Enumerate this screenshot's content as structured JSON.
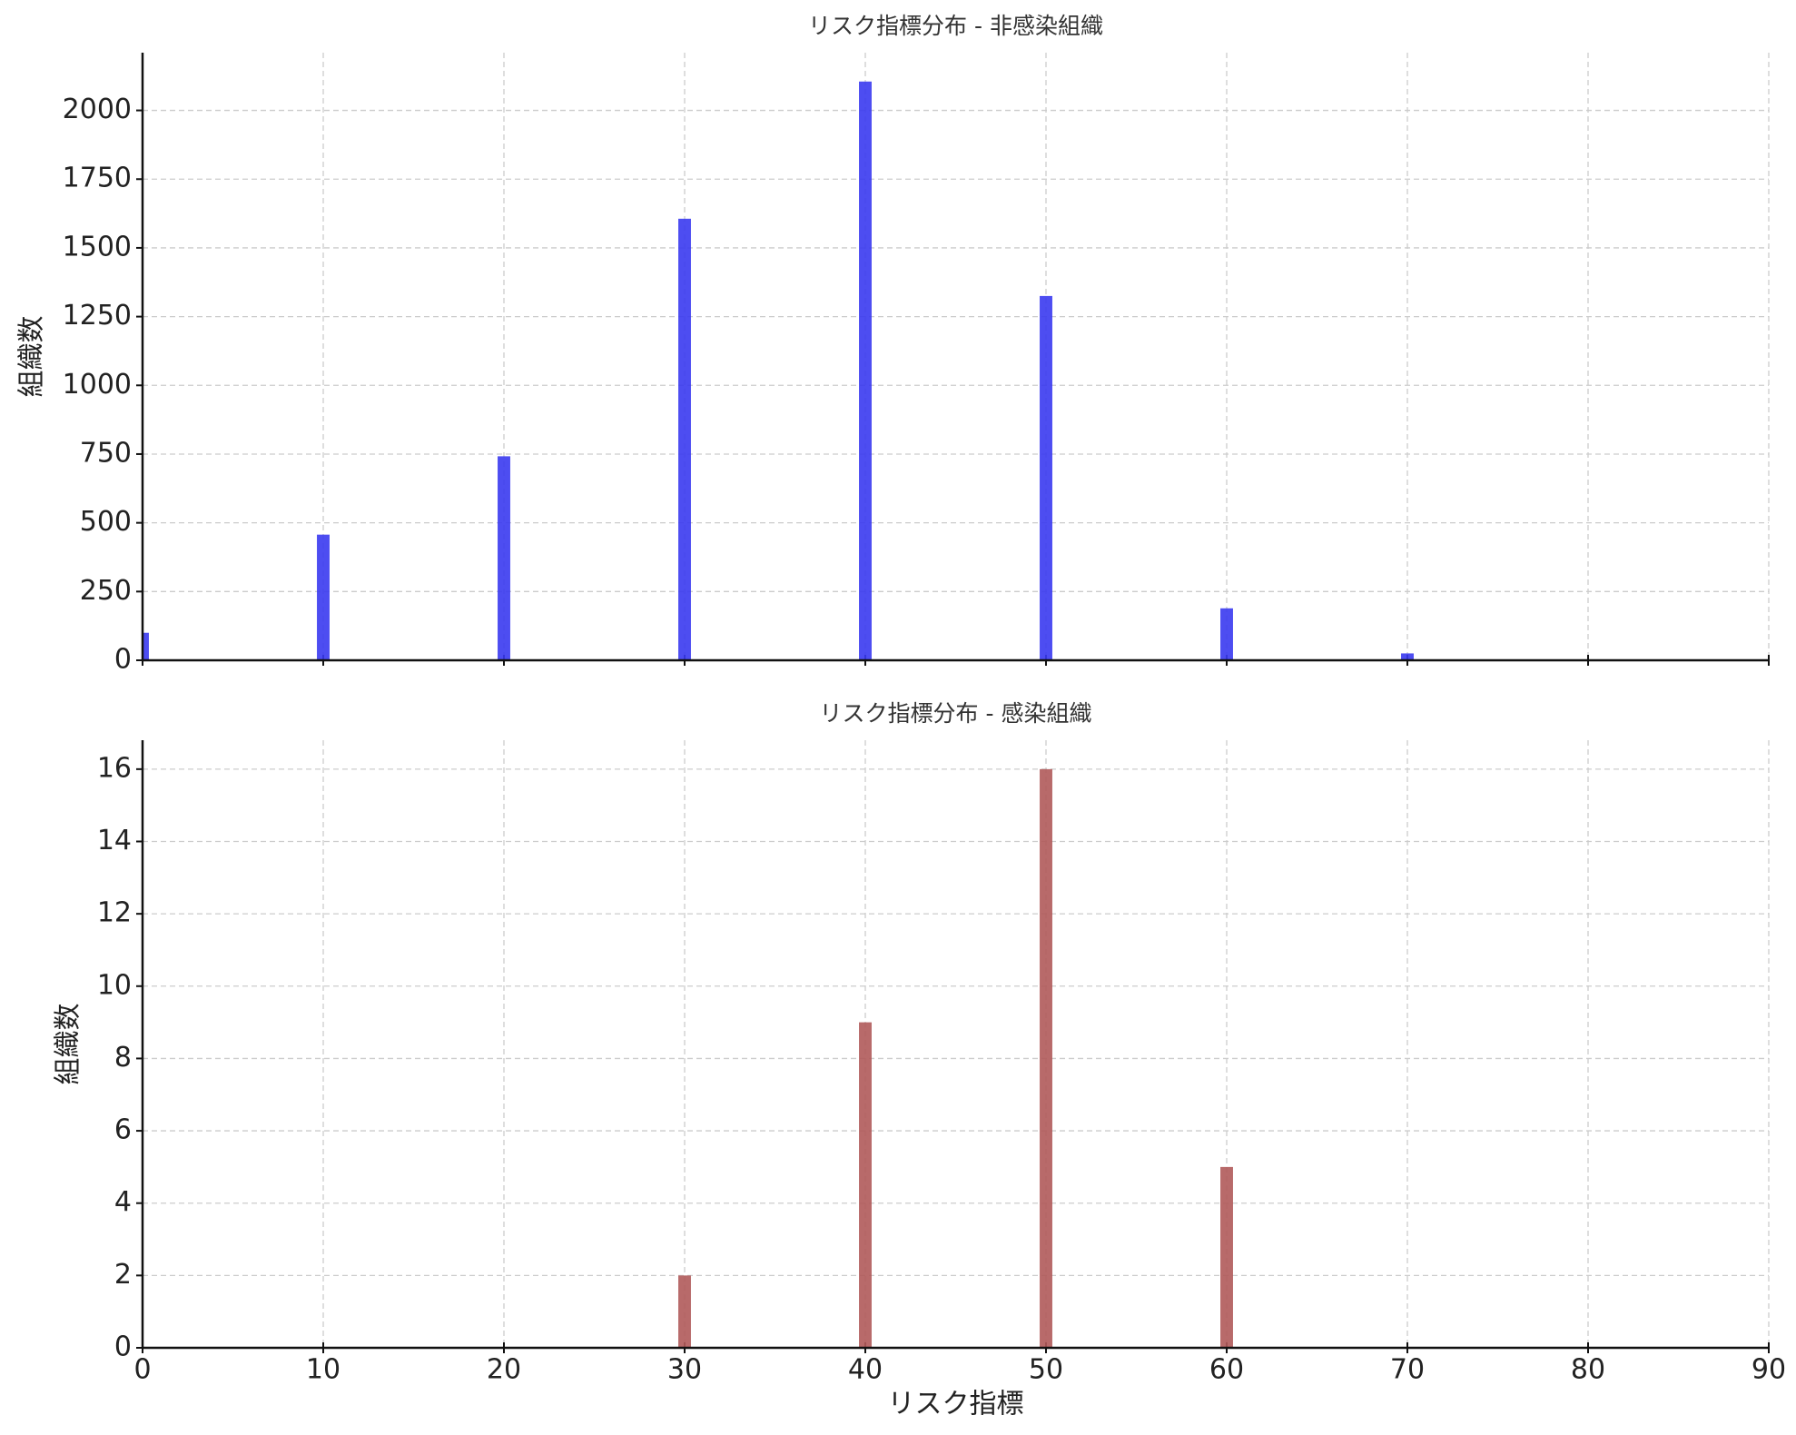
{
  "chart_data": [
    {
      "type": "bar",
      "title": "リスク指標分布 - 非感染組織",
      "y_label": "組織数",
      "x": [
        0,
        10,
        20,
        30,
        40,
        50,
        60,
        70
      ],
      "values": [
        100,
        457,
        742,
        1606,
        2105,
        1325,
        189,
        25
      ],
      "color": "#3a3af0",
      "xlim": [
        0,
        90
      ],
      "xticks": [
        0,
        10,
        20,
        30,
        40,
        50,
        60,
        70,
        80,
        90
      ],
      "ylim": [
        0,
        2210
      ],
      "yticks": [
        0,
        250,
        500,
        750,
        1000,
        1250,
        1500,
        1750,
        2000
      ],
      "grid": true
    },
    {
      "type": "bar",
      "title": "リスク指標分布 - 感染組織",
      "y_label": "組織数",
      "x_label": "リスク指標",
      "x": [
        30,
        40,
        50,
        60
      ],
      "values": [
        2,
        9,
        16,
        5
      ],
      "color": "#b05a5a",
      "xlim": [
        0,
        90
      ],
      "xticks": [
        0,
        10,
        20,
        30,
        40,
        50,
        60,
        70,
        80,
        90
      ],
      "ylim": [
        0,
        16.8
      ],
      "yticks": [
        0,
        2,
        4,
        6,
        8,
        10,
        12,
        14,
        16
      ],
      "grid": true
    }
  ]
}
